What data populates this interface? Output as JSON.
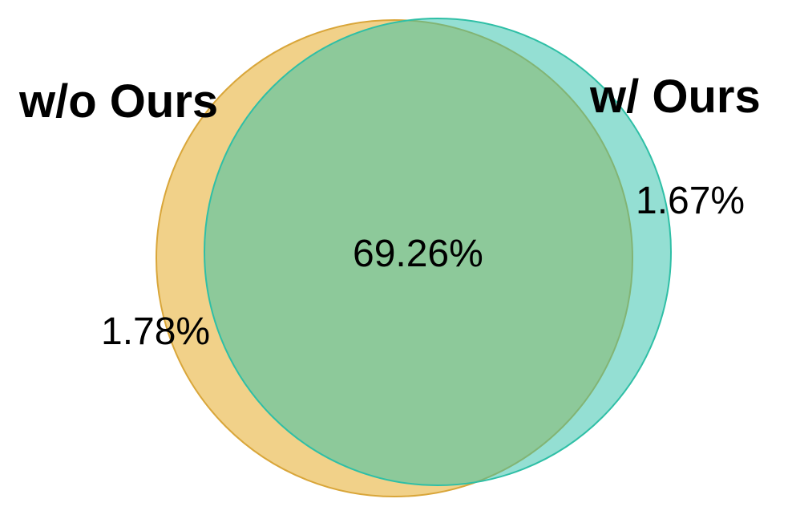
{
  "venn": {
    "sets": [
      {
        "name": "w/o Ours",
        "color": "#E9B949",
        "edge": "#D9A63A"
      },
      {
        "name": "w/ Ours",
        "color": "#32C2AA",
        "edge": "#2FBFA6"
      }
    ],
    "intersection_color": "#8BC68E",
    "regions": {
      "only_without": "1.78%",
      "both": "69.26%",
      "only_with": "1.67%"
    },
    "region_values": {
      "only_without": 1.78,
      "both": 69.26,
      "only_with": 1.67
    }
  }
}
